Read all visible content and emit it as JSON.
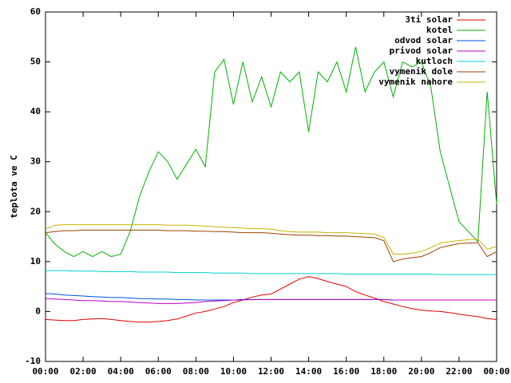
{
  "chart_data": {
    "type": "line",
    "ylabel": "teplota ve C",
    "x": [
      0,
      0.5,
      1,
      1.5,
      2,
      2.5,
      3,
      3.5,
      4,
      4.5,
      5,
      5.5,
      6,
      6.5,
      7,
      7.5,
      8,
      8.5,
      9,
      9.5,
      10,
      10.5,
      11,
      11.5,
      12,
      12.5,
      13,
      13.5,
      14,
      14.5,
      15,
      15.5,
      16,
      16.5,
      17,
      17.5,
      18,
      18.5,
      19,
      19.5,
      20,
      20.5,
      21,
      21.5,
      22,
      22.5,
      23,
      23.5,
      24
    ],
    "xlim": [
      0,
      24
    ],
    "xticks": [
      {
        "value": 0,
        "label": "00:00"
      },
      {
        "value": 2,
        "label": "02:00"
      },
      {
        "value": 4,
        "label": "04:00"
      },
      {
        "value": 6,
        "label": "06:00"
      },
      {
        "value": 8,
        "label": "08:00"
      },
      {
        "value": 10,
        "label": "10:00"
      },
      {
        "value": 12,
        "label": "12:00"
      },
      {
        "value": 14,
        "label": "14:00"
      },
      {
        "value": 16,
        "label": "16:00"
      },
      {
        "value": 18,
        "label": "18:00"
      },
      {
        "value": 20,
        "label": "20:00"
      },
      {
        "value": 22,
        "label": "22:00"
      },
      {
        "value": 24,
        "label": "00:00"
      }
    ],
    "ylim": [
      -10,
      60
    ],
    "yticks": [
      -10,
      0,
      10,
      20,
      30,
      40,
      50,
      60
    ],
    "legend": "top-right",
    "series": [
      {
        "name": "3ti solar",
        "color": "#e00000",
        "values": [
          -1.6,
          -1.7,
          -1.8,
          -1.8,
          -1.6,
          -1.5,
          -1.4,
          -1.6,
          -1.8,
          -2.0,
          -2.1,
          -2.1,
          -2.0,
          -1.8,
          -1.5,
          -0.9,
          -0.3,
          0,
          0.5,
          1.0,
          1.8,
          2.3,
          2.9,
          3.3,
          3.5,
          4.5,
          5.5,
          6.5,
          7.0,
          6.6,
          6.0,
          5.5,
          5.0,
          4.0,
          3.3,
          2.7,
          2.0,
          1.5,
          1.0,
          0.6,
          0.3,
          0.1,
          0,
          -0.2,
          -0.5,
          -0.8,
          -1.0,
          -1.4,
          -1.6
        ]
      },
      {
        "name": "kotel",
        "color": "#00b000",
        "values": [
          15.8,
          13.5,
          12,
          11,
          12,
          11,
          12,
          11,
          11.5,
          16,
          23,
          28,
          32,
          30,
          26.5,
          29.5,
          32.5,
          29,
          48,
          50.5,
          41.5,
          50,
          42,
          47,
          41,
          48,
          46,
          48,
          36,
          48,
          46,
          50,
          44,
          53,
          44,
          48,
          50,
          43,
          50,
          49,
          50,
          45,
          32,
          25,
          18,
          16,
          14,
          44,
          21.5
        ]
      },
      {
        "name": "odvod solar",
        "color": "#0050e0",
        "values": [
          3.6,
          3.5,
          3.3,
          3.2,
          3.1,
          3.0,
          2.9,
          2.8,
          2.8,
          2.7,
          2.6,
          2.6,
          2.5,
          2.5,
          2.4,
          2.4,
          2.3,
          2.3,
          2.3,
          2.3,
          2.3,
          2.4,
          2.4,
          2.4,
          2.4,
          2.4,
          2.4,
          2.4,
          2.4,
          2.4,
          2.4,
          2.4,
          2.4,
          2.4,
          2.4,
          2.4,
          2.4,
          2.3,
          2.3,
          2.3,
          2.3,
          2.3,
          2.3,
          2.3,
          2.3,
          2.3,
          2.3,
          2.3,
          2.3
        ]
      },
      {
        "name": "privod solar",
        "color": "#c000c0",
        "values": [
          2.6,
          2.5,
          2.4,
          2.3,
          2.2,
          2.2,
          2.1,
          2.0,
          2.0,
          1.9,
          1.8,
          1.7,
          1.6,
          1.6,
          1.6,
          1.7,
          1.8,
          2.0,
          2.1,
          2.2,
          2.3,
          2.3,
          2.4,
          2.4,
          2.4,
          2.4,
          2.4,
          2.4,
          2.4,
          2.4,
          2.4,
          2.4,
          2.4,
          2.4,
          2.4,
          2.4,
          2.4,
          2.3,
          2.3,
          2.3,
          2.3,
          2.3,
          2.3,
          2.3,
          2.3,
          2.3,
          2.3,
          2.3,
          2.3
        ]
      },
      {
        "name": "kutloch",
        "color": "#00d0d0",
        "values": [
          8.2,
          8.2,
          8.2,
          8.1,
          8.1,
          8.1,
          8.0,
          8.0,
          8.0,
          8.0,
          7.9,
          7.9,
          7.9,
          7.9,
          7.8,
          7.8,
          7.8,
          7.8,
          7.7,
          7.7,
          7.7,
          7.7,
          7.6,
          7.6,
          7.6,
          7.6,
          7.6,
          7.6,
          7.6,
          7.6,
          7.6,
          7.6,
          7.5,
          7.5,
          7.5,
          7.5,
          7.5,
          7.5,
          7.5,
          7.5,
          7.5,
          7.5,
          7.4,
          7.4,
          7.4,
          7.4,
          7.4,
          7.4,
          7.4
        ]
      },
      {
        "name": "vymenik dole",
        "color": "#a04000",
        "values": [
          15.8,
          16.0,
          16.2,
          16.2,
          16.3,
          16.3,
          16.3,
          16.3,
          16.3,
          16.3,
          16.3,
          16.3,
          16.3,
          16.2,
          16.2,
          16.2,
          16.1,
          16.1,
          16.0,
          16.0,
          15.9,
          15.8,
          15.8,
          15.8,
          15.7,
          15.5,
          15.4,
          15.3,
          15.3,
          15.2,
          15.2,
          15.1,
          15.1,
          15.0,
          14.9,
          14.8,
          14.2,
          10.0,
          10.5,
          10.8,
          11.0,
          11.8,
          12.8,
          13.2,
          13.6,
          13.7,
          13.8,
          11.0,
          12.0
        ]
      },
      {
        "name": "vymenik nahore",
        "color": "#c8b400",
        "values": [
          16.5,
          17.3,
          17.4,
          17.4,
          17.4,
          17.4,
          17.4,
          17.4,
          17.4,
          17.4,
          17.4,
          17.4,
          17.4,
          17.3,
          17.3,
          17.3,
          17.2,
          17.1,
          17.0,
          16.9,
          16.8,
          16.7,
          16.6,
          16.6,
          16.5,
          16.2,
          16.0,
          15.9,
          15.9,
          15.9,
          15.8,
          15.8,
          15.8,
          15.7,
          15.6,
          15.5,
          14.8,
          11.5,
          11.5,
          11.7,
          12.0,
          12.8,
          13.7,
          14.0,
          14.2,
          14.4,
          14.5,
          12.5,
          13.0
        ]
      }
    ]
  }
}
